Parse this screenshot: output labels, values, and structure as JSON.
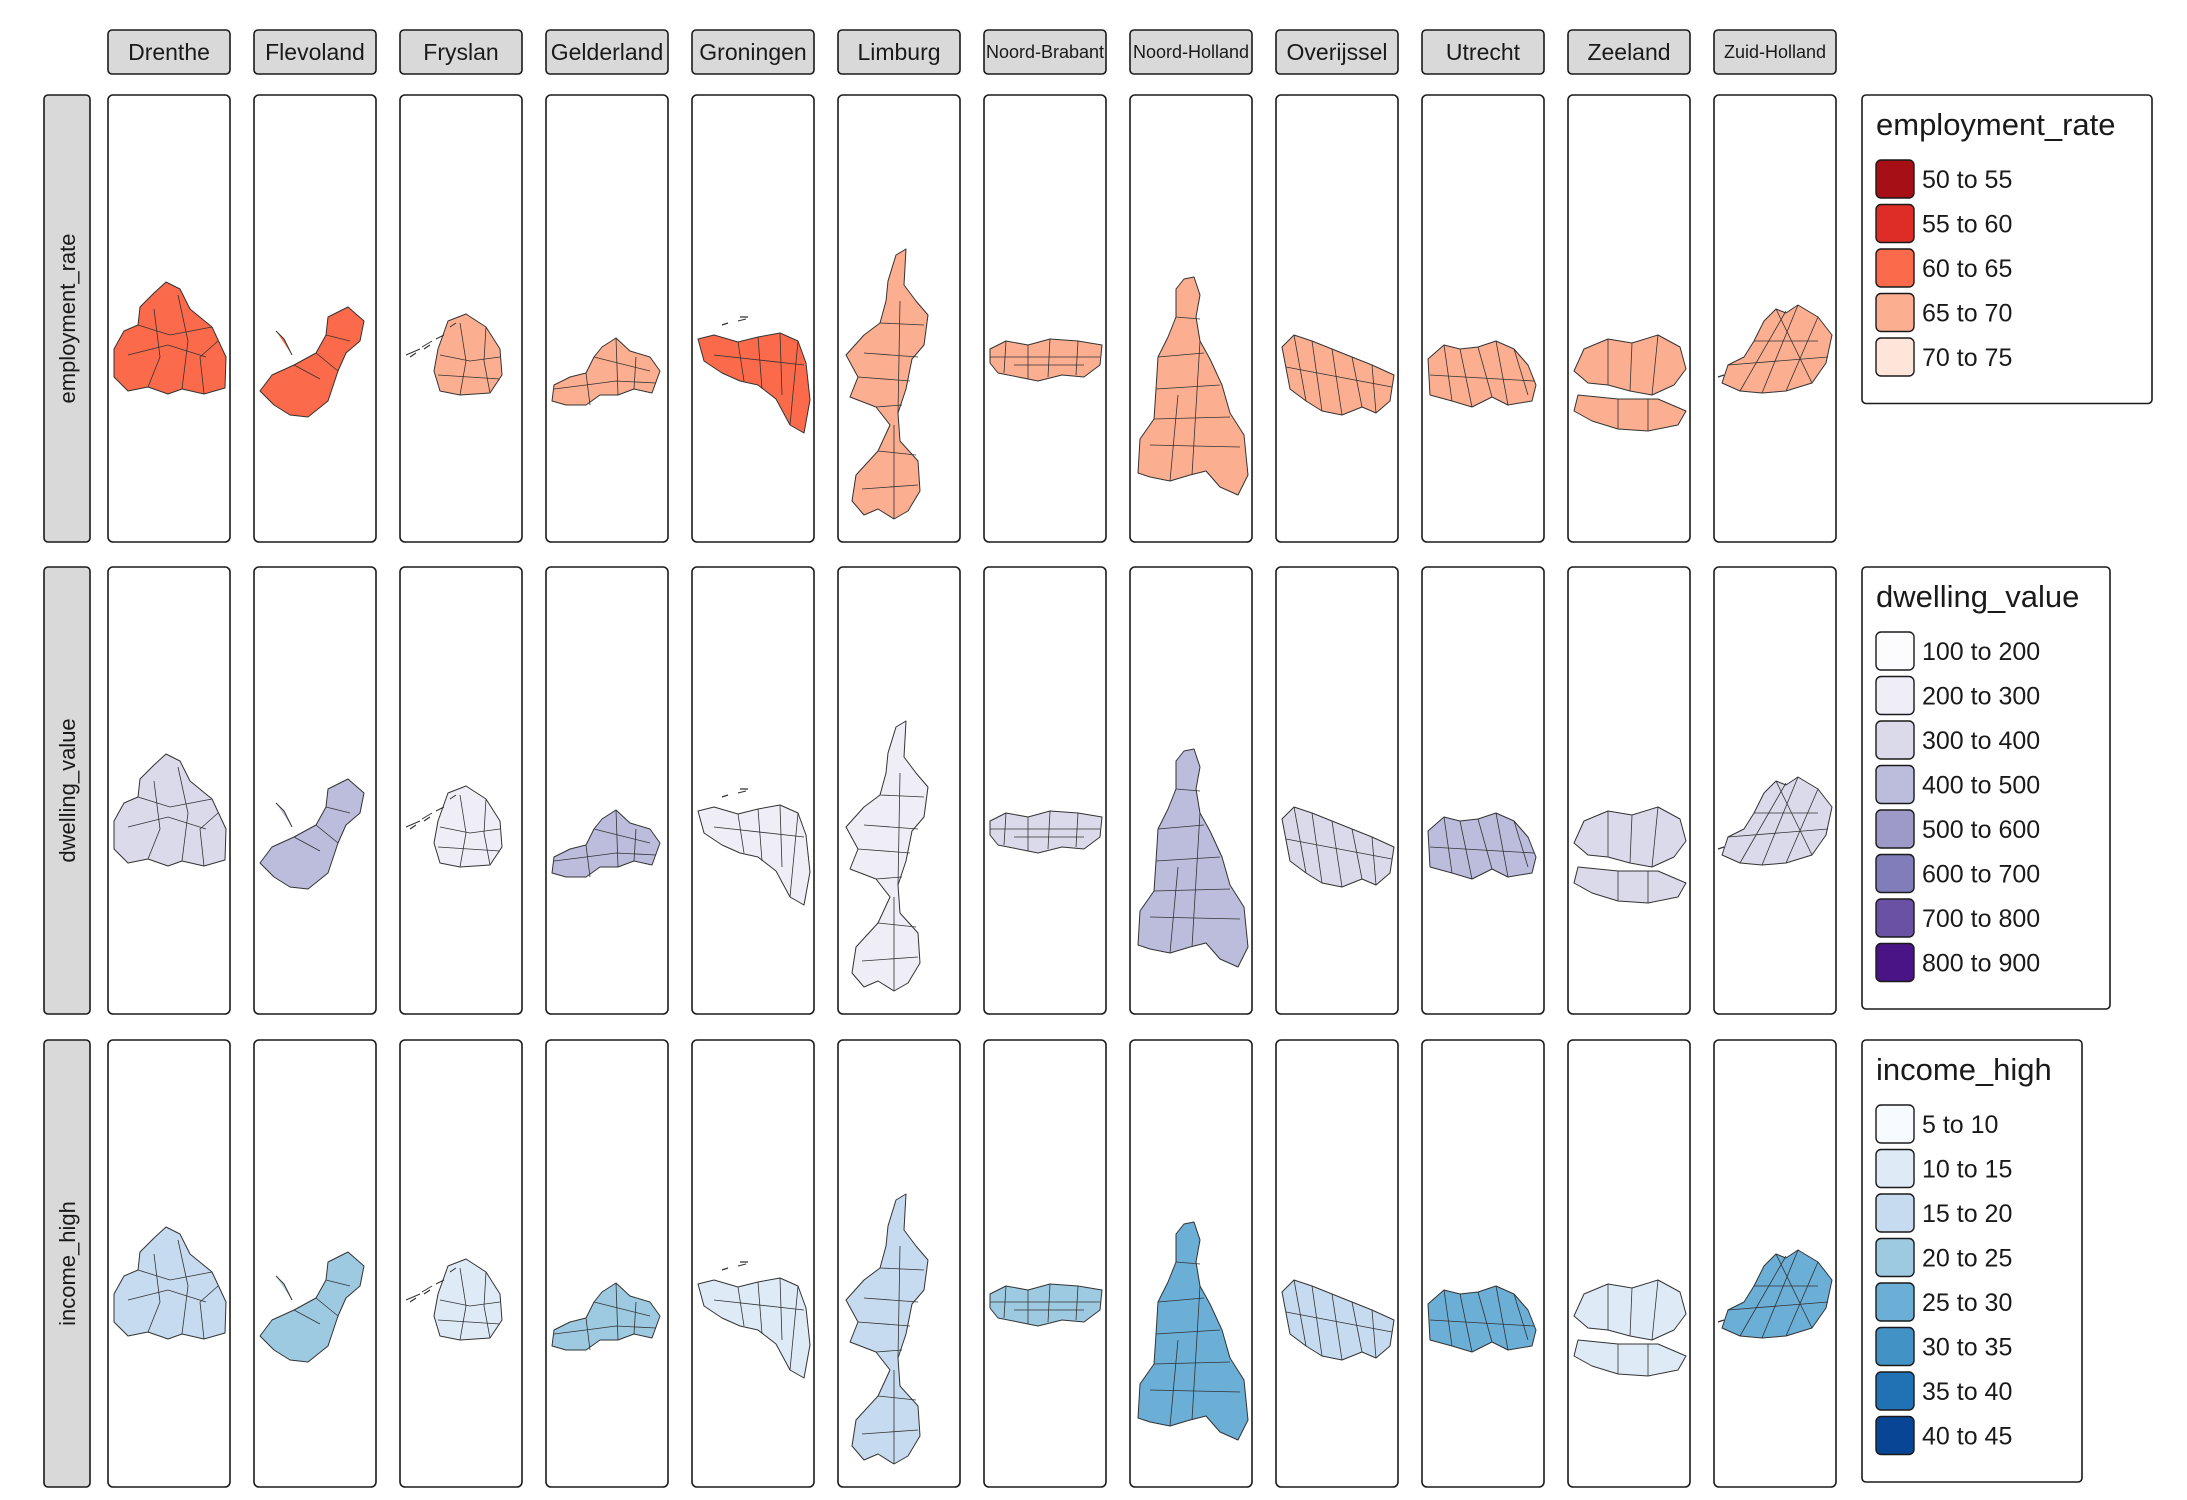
{
  "provinces": [
    "Drenthe",
    "Flevoland",
    "Fryslan",
    "Gelderland",
    "Groningen",
    "Limburg",
    "Noord-Brabant",
    "Noord-Holland",
    "Overijssel",
    "Utrecht",
    "Zeeland",
    "Zuid-Holland"
  ],
  "variables": [
    {
      "key": "employment_rate",
      "label": "employment_rate",
      "legend_title": "employment_rate",
      "palette": "reds",
      "classes": [
        {
          "label": "50 to 55",
          "color": "#a50f15"
        },
        {
          "label": "55 to 60",
          "color": "#de2d26"
        },
        {
          "label": "60 to 65",
          "color": "#fb6a4a"
        },
        {
          "label": "65 to 70",
          "color": "#fcae91"
        },
        {
          "label": "70 to 75",
          "color": "#fee5d9"
        }
      ]
    },
    {
      "key": "dwelling_value",
      "label": "dwelling_value",
      "legend_title": "dwelling_value",
      "palette": "purples",
      "classes": [
        {
          "label": "100 to 200",
          "color": "#fcfbfd"
        },
        {
          "label": "200 to 300",
          "color": "#efedf5"
        },
        {
          "label": "300 to 400",
          "color": "#dadaeb"
        },
        {
          "label": "400 to 500",
          "color": "#bcbddc"
        },
        {
          "label": "500 to 600",
          "color": "#9e9ac8"
        },
        {
          "label": "600 to 700",
          "color": "#807dba"
        },
        {
          "label": "700 to 800",
          "color": "#6a51a3"
        },
        {
          "label": "800 to 900",
          "color": "#4a1486"
        }
      ]
    },
    {
      "key": "income_high",
      "label": "income_high",
      "legend_title": "income_high",
      "palette": "blues",
      "classes": [
        {
          "label": "5 to 10",
          "color": "#f7fbff"
        },
        {
          "label": "10 to 15",
          "color": "#deebf7"
        },
        {
          "label": "15 to 20",
          "color": "#c6dbef"
        },
        {
          "label": "20 to 25",
          "color": "#9ecae1"
        },
        {
          "label": "25 to 30",
          "color": "#6baed6"
        },
        {
          "label": "30 to 35",
          "color": "#4292c6"
        },
        {
          "label": "35 to 40",
          "color": "#2171b5"
        },
        {
          "label": "40 to 45",
          "color": "#084594"
        }
      ]
    }
  ],
  "typical_class": {
    "employment_rate": {
      "Drenthe": 2,
      "Flevoland": 2,
      "Fryslan": 3,
      "Gelderland": 3,
      "Groningen": 2,
      "Limburg": 3,
      "Noord-Brabant": 3,
      "Noord-Holland": 3,
      "Overijssel": 3,
      "Utrecht": 3,
      "Zeeland": 3,
      "Zuid-Holland": 3
    },
    "dwelling_value": {
      "Drenthe": 2,
      "Flevoland": 3,
      "Fryslan": 1,
      "Gelderland": 3,
      "Groningen": 1,
      "Limburg": 1,
      "Noord-Brabant": 2,
      "Noord-Holland": 3,
      "Overijssel": 2,
      "Utrecht": 3,
      "Zeeland": 2,
      "Zuid-Holland": 2
    },
    "income_high": {
      "Drenthe": 2,
      "Flevoland": 3,
      "Fryslan": 1,
      "Gelderland": 3,
      "Groningen": 1,
      "Limburg": 2,
      "Noord-Brabant": 3,
      "Noord-Holland": 4,
      "Overijssel": 2,
      "Utrecht": 4,
      "Zeeland": 1,
      "Zuid-Holland": 4
    }
  },
  "chart_data": {
    "type": "choropleth-facet-grid",
    "columns": [
      "Drenthe",
      "Flevoland",
      "Fryslan",
      "Gelderland",
      "Groningen",
      "Limburg",
      "Noord-Brabant",
      "Noord-Holland",
      "Overijssel",
      "Utrecht",
      "Zeeland",
      "Zuid-Holland"
    ],
    "rows": [
      "employment_rate",
      "dwelling_value",
      "income_high"
    ],
    "legend_placement": "right of each row"
  }
}
